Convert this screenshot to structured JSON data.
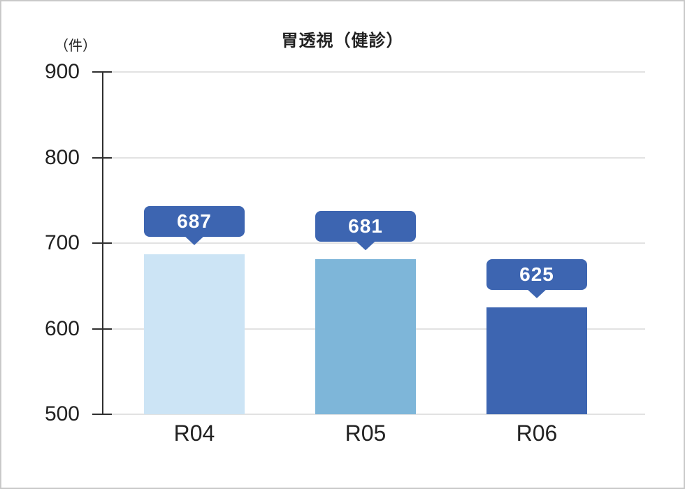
{
  "chart_data": {
    "type": "bar",
    "title": "胃透視（健診）",
    "unit_label": "（件）",
    "categories": [
      "R04",
      "R05",
      "R06"
    ],
    "values": [
      687,
      681,
      625
    ],
    "bar_colors": [
      "#cce4f5",
      "#7eb6d9",
      "#3d65b1"
    ],
    "value_badge_color": "#3d65b1",
    "value_badge_text_color": "#ffffff",
    "ylim": [
      500,
      900
    ],
    "yticks": [
      900,
      800,
      700,
      600,
      500
    ],
    "grid": true,
    "legend": "none",
    "gridline_color": "#e2e2e2",
    "axis_color": "#2f2f2f",
    "text_color": "#222222",
    "frame_border_color": "#c9c9c9"
  }
}
